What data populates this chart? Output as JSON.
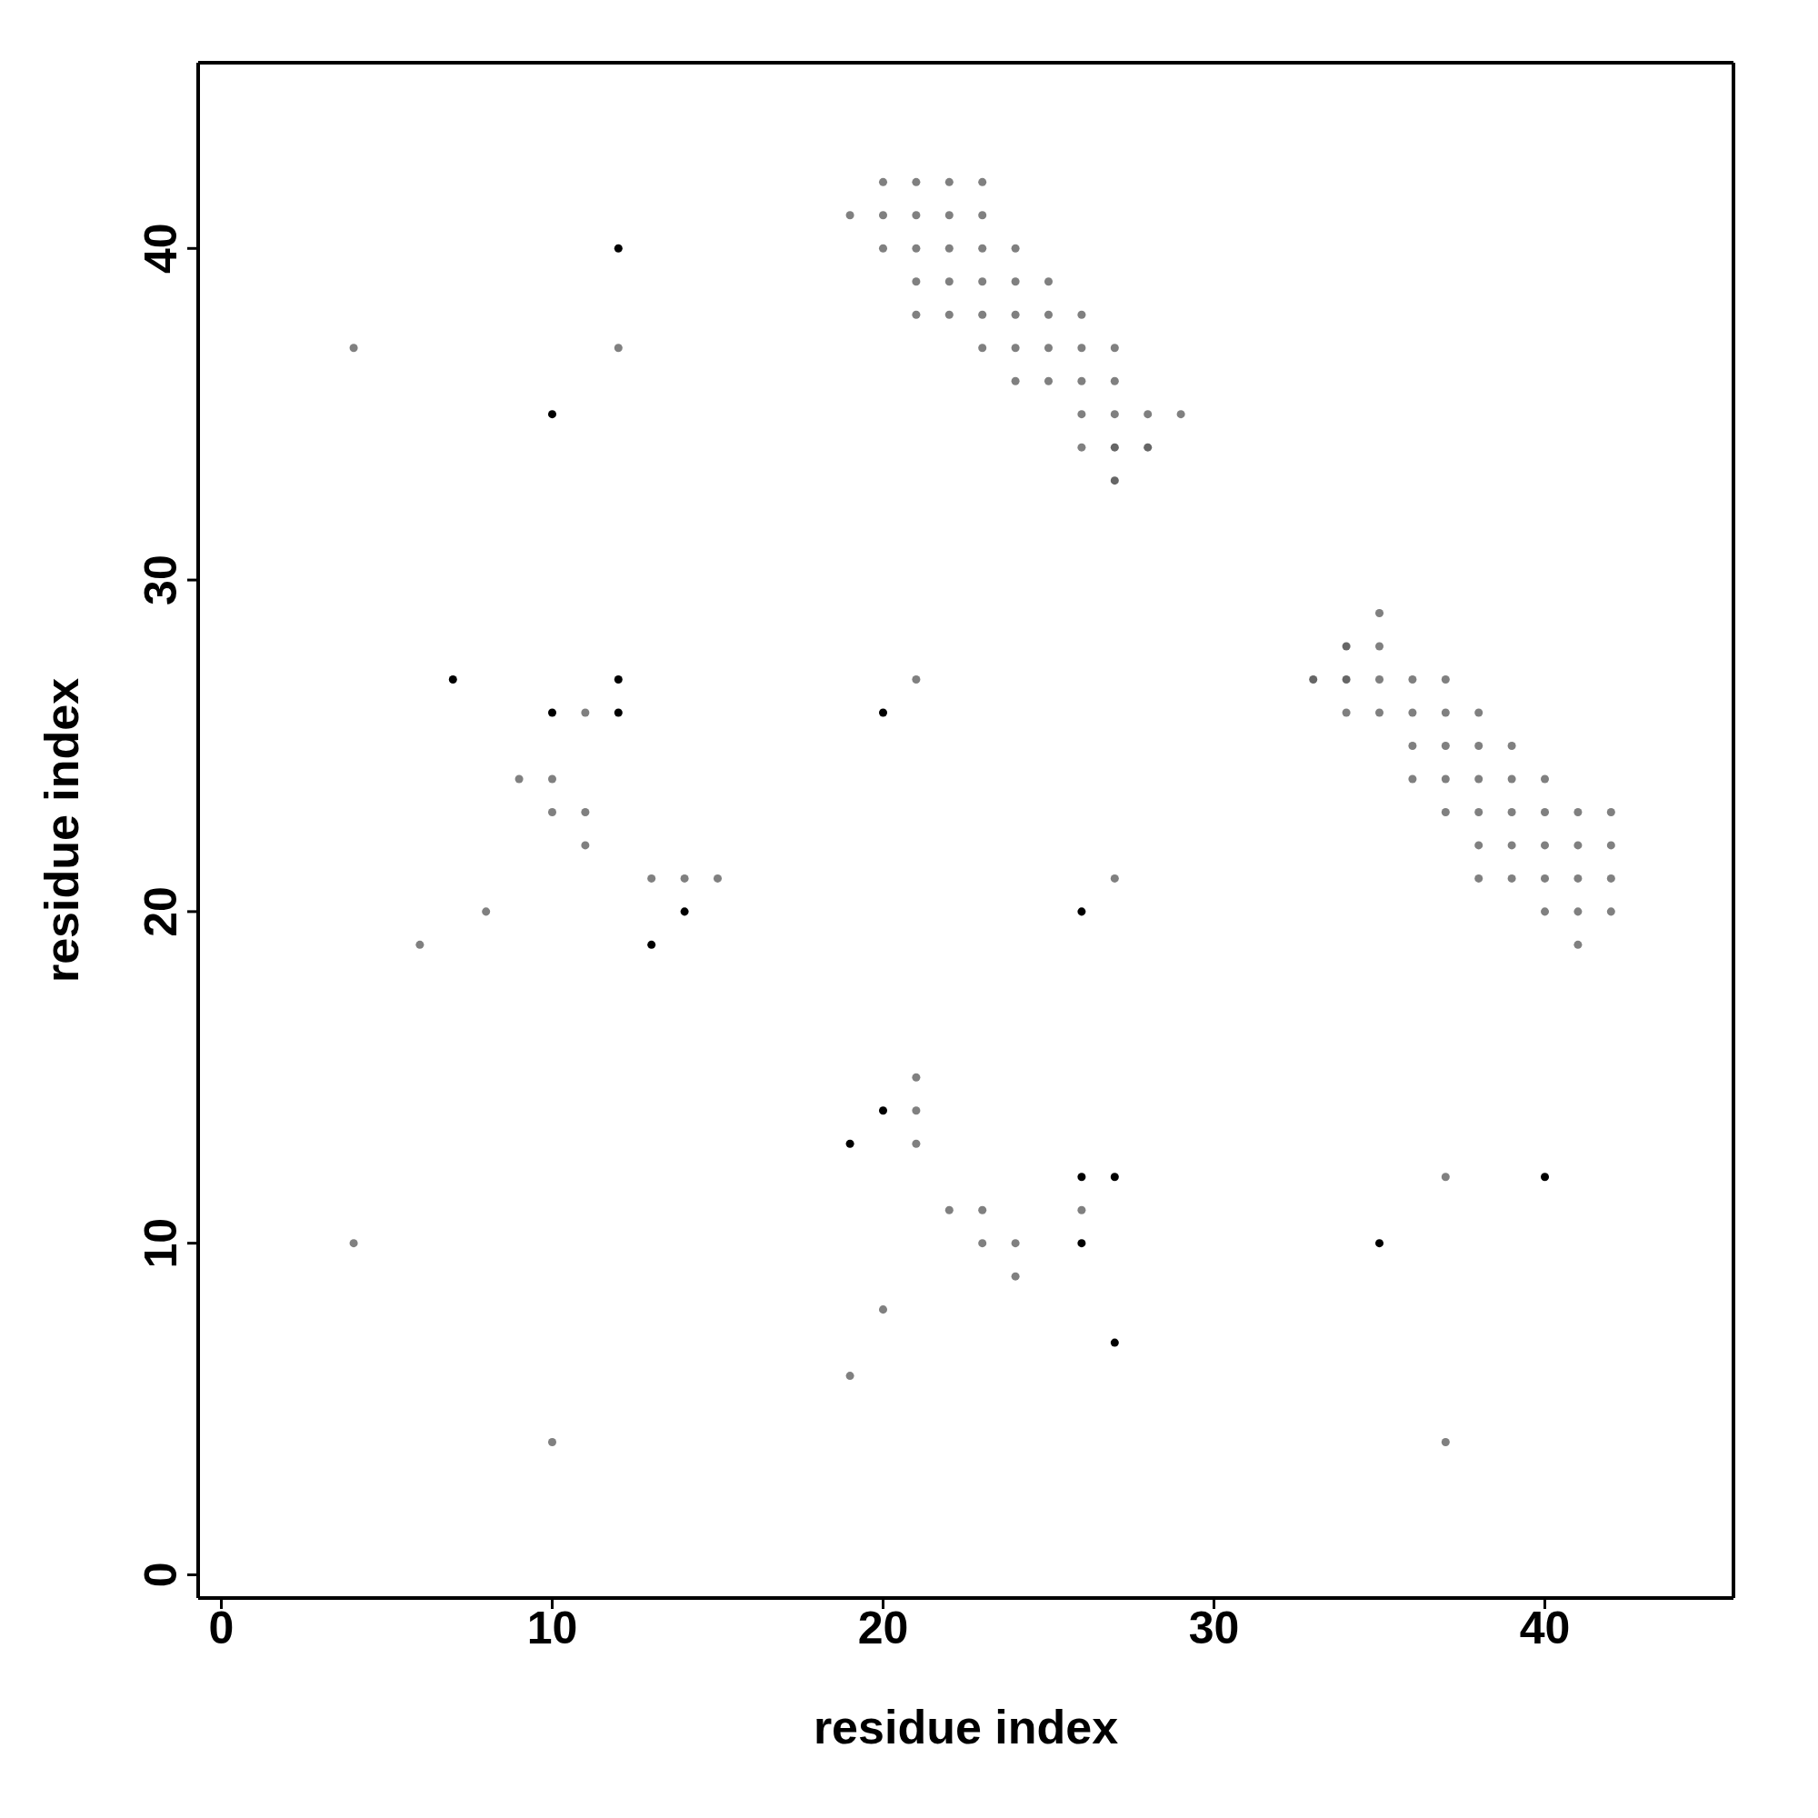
{
  "chart_data": {
    "type": "scatter",
    "xlabel": "residue index",
    "ylabel": "residue index",
    "xlim": [
      -0.7,
      45.7
    ],
    "ylim": [
      -0.7,
      45.6
    ],
    "xticks": [
      0,
      10,
      20,
      30,
      40
    ],
    "yticks": [
      0,
      10,
      20,
      30,
      40
    ],
    "marker": "circle",
    "series": [
      {
        "color": "#808080",
        "x": [
          4,
          12,
          11,
          9,
          10,
          10,
          11,
          11,
          13,
          14,
          15,
          8,
          6,
          4,
          10,
          20,
          21,
          22,
          23,
          19,
          20,
          21,
          22,
          23,
          20,
          21,
          22,
          23,
          24,
          21,
          22,
          23,
          24,
          25,
          21,
          22,
          23,
          24,
          25,
          26,
          23,
          24,
          25,
          26,
          27,
          24,
          25,
          26,
          27,
          26,
          27,
          28,
          29,
          26,
          21,
          27,
          35,
          35,
          35,
          36,
          37,
          34,
          35,
          36,
          37,
          38,
          36,
          37,
          38,
          39,
          36,
          37,
          38,
          39,
          40,
          37,
          38,
          39,
          40,
          41,
          42,
          38,
          39,
          40,
          41,
          42,
          38,
          39,
          40,
          41,
          42,
          40,
          41,
          42,
          41,
          21,
          21,
          21,
          22,
          23,
          23,
          24,
          24,
          26,
          20,
          19,
          37,
          37
        ],
        "values": [
          37,
          37,
          26,
          24,
          24,
          23,
          23,
          22,
          21,
          21,
          21,
          20,
          19,
          10,
          4,
          42,
          42,
          42,
          42,
          41,
          41,
          41,
          41,
          41,
          40,
          40,
          40,
          40,
          40,
          39,
          39,
          39,
          39,
          39,
          38,
          38,
          38,
          38,
          38,
          38,
          37,
          37,
          37,
          37,
          37,
          36,
          36,
          36,
          36,
          35,
          35,
          35,
          35,
          34,
          27,
          21,
          29,
          28,
          27,
          27,
          27,
          26,
          26,
          26,
          26,
          26,
          25,
          25,
          25,
          25,
          24,
          24,
          24,
          24,
          24,
          23,
          23,
          23,
          23,
          23,
          23,
          22,
          22,
          22,
          22,
          22,
          21,
          21,
          21,
          21,
          21,
          20,
          20,
          20,
          19,
          15,
          14,
          13,
          11,
          11,
          10,
          10,
          9,
          11,
          8,
          6,
          12,
          4
        ]
      },
      {
        "color": "#666666",
        "x": [
          27,
          28,
          27,
          33,
          34,
          34
        ],
        "values": [
          34,
          34,
          33,
          27,
          28,
          27
        ]
      },
      {
        "color": "#000000",
        "x": [
          12,
          10,
          7,
          12,
          10,
          12,
          20,
          14,
          13,
          26,
          20,
          19,
          26,
          27,
          40,
          26,
          35,
          27
        ],
        "values": [
          40,
          35,
          27,
          27,
          26,
          26,
          26,
          20,
          19,
          20,
          14,
          13,
          12,
          12,
          12,
          10,
          10,
          7
        ]
      }
    ]
  }
}
